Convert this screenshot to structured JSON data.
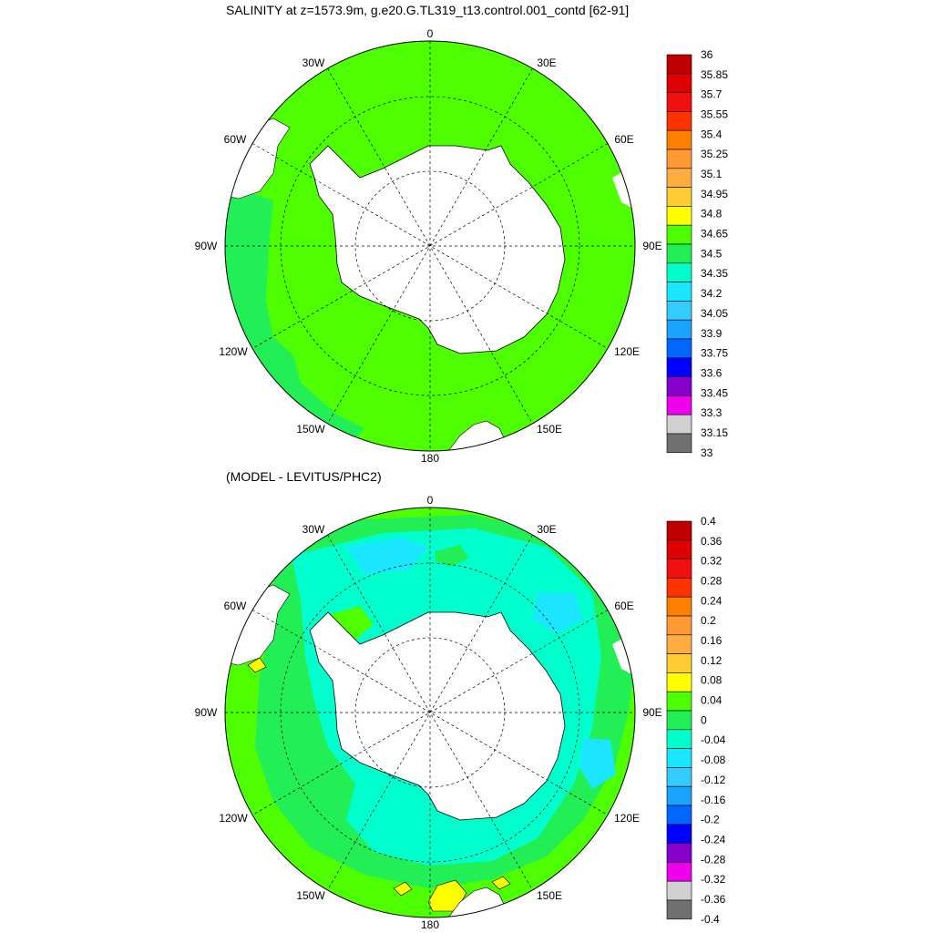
{
  "top_panel": {
    "title": "SALINITY at z=1573.9m, g.e20.G.TL319_t13.control.001_contd [62-91]",
    "longitude_labels": [
      "0",
      "30E",
      "60E",
      "90E",
      "120E",
      "150E",
      "180",
      "150W",
      "120W",
      "90W",
      "60W",
      "30W"
    ],
    "colorbar": {
      "labels": [
        "36",
        "35.85",
        "35.7",
        "35.55",
        "35.4",
        "35.25",
        "35.1",
        "34.95",
        "34.8",
        "34.65",
        "34.5",
        "34.35",
        "34.2",
        "34.05",
        "33.9",
        "33.75",
        "33.6",
        "33.45",
        "33.3",
        "33.15",
        "33"
      ],
      "colors": [
        "#c00000",
        "#e00000",
        "#f01010",
        "#ff3300",
        "#ff8000",
        "#ff9933",
        "#ffad40",
        "#ffcc33",
        "#ffff00",
        "#4dff00",
        "#22ee55",
        "#00ffcc",
        "#1ae6ff",
        "#33ccff",
        "#1aa3ff",
        "#0066ff",
        "#0000ff",
        "#8800cc",
        "#ee00ee",
        "#d0d0d0",
        "#707070"
      ]
    }
  },
  "bottom_panel": {
    "title": "(MODEL - LEVITUS/PHC2)",
    "longitude_labels": [
      "0",
      "30E",
      "60E",
      "90E",
      "120E",
      "150E",
      "180",
      "150W",
      "120W",
      "90W",
      "60W",
      "30W"
    ],
    "colorbar": {
      "labels": [
        "0.4",
        "0.36",
        "0.32",
        "0.28",
        "0.24",
        "0.2",
        "0.16",
        "0.12",
        "0.08",
        "0.04",
        "0",
        "-0.04",
        "-0.08",
        "-0.12",
        "-0.16",
        "-0.2",
        "-0.24",
        "-0.28",
        "-0.32",
        "-0.36",
        "-0.4"
      ],
      "colors": [
        "#c00000",
        "#e00000",
        "#f01010",
        "#ff3300",
        "#ff8000",
        "#ff9933",
        "#ffad40",
        "#ffcc33",
        "#ffff00",
        "#4dff00",
        "#22ee55",
        "#00ffcc",
        "#1ae6ff",
        "#33ccff",
        "#1aa3ff",
        "#0066ff",
        "#0000ff",
        "#8800cc",
        "#ee00ee",
        "#d0d0d0",
        "#707070"
      ]
    }
  },
  "fill_colors": {
    "top_ocean": "#4dff00",
    "top_band": "#22ee55",
    "diff_pos": "#4dff00",
    "diff_zero": "#22ee55",
    "diff_neg1": "#00ffcc",
    "diff_neg2": "#1ae6ff",
    "diff_high": "#ffff00",
    "land": "#ffffff"
  }
}
